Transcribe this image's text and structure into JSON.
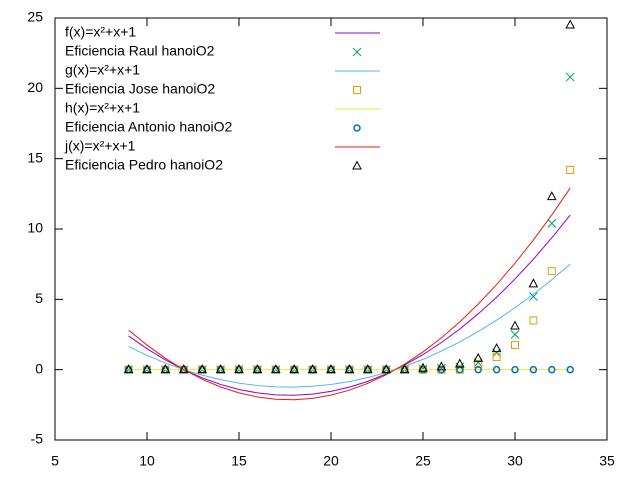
{
  "chart_data": {
    "type": "line",
    "x": [
      9,
      10,
      11,
      12,
      13,
      14,
      15,
      16,
      17,
      18,
      19,
      20,
      21,
      22,
      23,
      24,
      25,
      26,
      27,
      28,
      29,
      30,
      31,
      32,
      33
    ],
    "xlim": [
      5,
      35
    ],
    "xticks": [
      5,
      10,
      15,
      20,
      25,
      30,
      35
    ],
    "ylim": [
      -5,
      25
    ],
    "yticks": [
      -5,
      0,
      5,
      10,
      15,
      20,
      25
    ],
    "grid": false,
    "legend": "top-left",
    "series": [
      {
        "name": "f(x)=x²+x+1",
        "style": "line",
        "color": "#9400d3",
        "values": [
          2.4,
          1.49,
          0.69,
          0,
          -0.58,
          -1.05,
          -1.41,
          -1.65,
          -1.79,
          -1.82,
          -1.74,
          -1.54,
          -1.24,
          -0.83,
          -0.3,
          0.33,
          1.07,
          1.93,
          2.89,
          3.97,
          5.15,
          6.45,
          7.85,
          9.37,
          10.99
        ]
      },
      {
        "name": "Eficiencia Raul hanoiO2",
        "style": "points",
        "marker": "x",
        "color": "#009e73",
        "values": [
          0,
          0,
          0,
          0,
          0,
          0,
          0,
          0,
          0,
          0,
          0,
          0,
          0,
          0,
          0,
          0,
          0.05,
          0.1,
          0.2,
          0.5,
          1.2,
          2.5,
          5.2,
          10.4,
          20.8
        ]
      },
      {
        "name": "g(x)=x²+x+1",
        "style": "line",
        "color": "#56b4e9",
        "values": [
          1.64,
          1.02,
          0.47,
          0,
          -0.39,
          -0.71,
          -0.96,
          -1.13,
          -1.22,
          -1.24,
          -1.18,
          -1.05,
          -0.85,
          -0.56,
          -0.21,
          0.23,
          0.73,
          1.32,
          1.97,
          2.71,
          3.52,
          4.4,
          5.36,
          6.39,
          7.5
        ]
      },
      {
        "name": "Eficiencia Jose hanoiO2",
        "style": "points",
        "marker": "square",
        "color": "#e69f00",
        "values": [
          0,
          0,
          0,
          0,
          0,
          0,
          0,
          0,
          0,
          0,
          0,
          0,
          0,
          0,
          0,
          0,
          0,
          0,
          0,
          0.4,
          0.9,
          1.75,
          3.5,
          7.0,
          14.2
        ]
      },
      {
        "name": "h(x)=x²+x+1",
        "style": "line",
        "color": "#f0e442",
        "values": [
          0,
          0,
          0,
          0,
          0,
          0,
          0,
          0,
          0,
          0,
          0,
          0,
          0,
          0,
          0,
          0,
          0,
          0,
          0,
          0,
          0,
          0,
          0,
          0,
          0
        ]
      },
      {
        "name": "Eficiencia Antonio hanoiO2",
        "style": "points",
        "marker": "circle",
        "color": "#0072b2",
        "values": [
          0,
          0,
          0,
          0,
          0,
          0,
          0,
          0,
          0,
          0,
          0,
          0,
          0,
          0,
          0,
          0,
          0,
          0,
          0,
          0,
          0,
          0,
          0,
          0,
          0
        ]
      },
      {
        "name": "j(x)=x²+x+1",
        "style": "line",
        "color": "#e51e10",
        "values": [
          2.81,
          1.75,
          0.81,
          0,
          -0.68,
          -1.23,
          -1.65,
          -1.94,
          -2.1,
          -2.14,
          -2.04,
          -1.81,
          -1.46,
          -0.97,
          -0.36,
          0.39,
          1.26,
          2.26,
          3.4,
          4.66,
          6.05,
          7.57,
          9.22,
          11.0,
          12.91
        ]
      },
      {
        "name": "Eficiencia Pedro hanoiO2",
        "style": "points",
        "marker": "triangle",
        "color": "#000000",
        "values": [
          0,
          0,
          0,
          0,
          0,
          0,
          0,
          0,
          0,
          0,
          0,
          0,
          0,
          0,
          0,
          0,
          0.1,
          0.2,
          0.4,
          0.8,
          1.5,
          3.1,
          6.1,
          12.3,
          24.5
        ]
      }
    ]
  }
}
